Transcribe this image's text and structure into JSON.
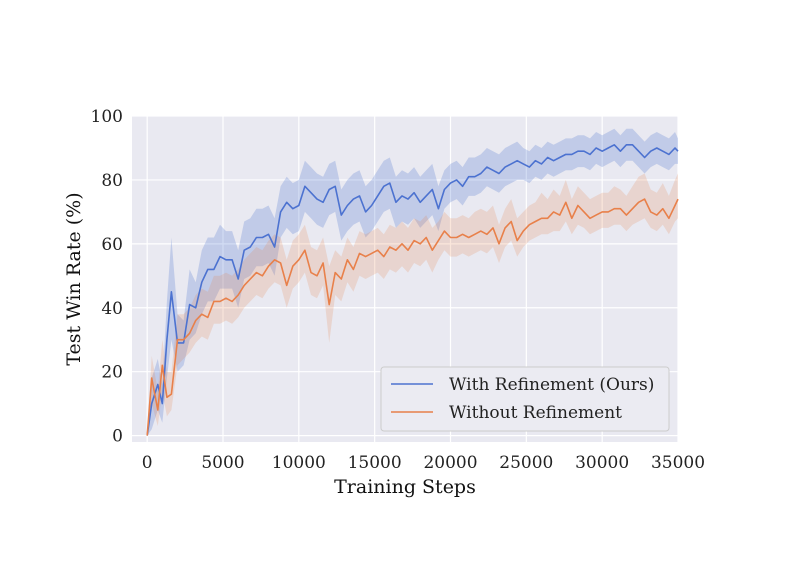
{
  "chart_data": {
    "type": "line",
    "title": "",
    "xlabel": "Training Steps",
    "ylabel": "Test Win Rate (%)",
    "xlim": [
      -1000,
      35000
    ],
    "ylim": [
      -2,
      100
    ],
    "xticks": [
      0,
      5000,
      10000,
      15000,
      20000,
      25000,
      30000,
      35000
    ],
    "xtick_labels": [
      "0",
      "5000",
      "10000",
      "15000",
      "20000",
      "25000",
      "30000",
      "35000"
    ],
    "yticks": [
      0,
      20,
      40,
      60,
      80,
      100
    ],
    "ytick_labels": [
      "0",
      "20",
      "40",
      "60",
      "80",
      "100"
    ],
    "grid": true,
    "legend_position": "lower-right",
    "background": "#e9e9f1",
    "series": [
      {
        "name": "With Refinement (Ours)",
        "color": "#4c72d0",
        "band_opacity": 0.25,
        "x": [
          0,
          300,
          700,
          1000,
          1300,
          1600,
          2000,
          2400,
          2800,
          3200,
          3600,
          4000,
          4400,
          4800,
          5200,
          5600,
          6000,
          6400,
          6800,
          7200,
          7600,
          8000,
          8400,
          8800,
          9200,
          9600,
          10000,
          10400,
          10800,
          11200,
          11600,
          12000,
          12400,
          12800,
          13200,
          13600,
          14000,
          14400,
          14800,
          15200,
          15600,
          16000,
          16400,
          16800,
          17200,
          17600,
          18000,
          18400,
          18800,
          19200,
          19600,
          20000,
          20400,
          20800,
          21200,
          21600,
          22000,
          22400,
          22800,
          23200,
          23600,
          24000,
          24400,
          24800,
          25200,
          25600,
          26000,
          26400,
          26800,
          27200,
          27600,
          28000,
          28400,
          28800,
          29200,
          29600,
          30000,
          30400,
          30800,
          31200,
          31600,
          32000,
          32400,
          32800,
          33200,
          33600,
          34000,
          34400,
          34800,
          35000
        ],
        "values": [
          0,
          10,
          16,
          10,
          30,
          45,
          29,
          29,
          41,
          40,
          48,
          52,
          52,
          56,
          55,
          55,
          49,
          58,
          59,
          62,
          62,
          63,
          59,
          70,
          73,
          71,
          72,
          78,
          76,
          74,
          73,
          77,
          78,
          69,
          72,
          74,
          75,
          70,
          72,
          75,
          78,
          79,
          73,
          75,
          74,
          76,
          73,
          75,
          77,
          71,
          77,
          79,
          80,
          78,
          81,
          81,
          82,
          84,
          83,
          82,
          84,
          85,
          86,
          85,
          84,
          86,
          85,
          87,
          86,
          87,
          88,
          88,
          89,
          89,
          88,
          90,
          89,
          90,
          91,
          89,
          91,
          91,
          89,
          87,
          89,
          90,
          89,
          88,
          90,
          89
        ],
        "lower": [
          0,
          2,
          8,
          4,
          18,
          30,
          20,
          22,
          30,
          32,
          38,
          42,
          42,
          46,
          46,
          46,
          40,
          49,
          50,
          53,
          53,
          54,
          50,
          62,
          65,
          63,
          64,
          70,
          68,
          66,
          65,
          69,
          70,
          61,
          64,
          66,
          67,
          62,
          64,
          67,
          70,
          71,
          65,
          67,
          66,
          68,
          65,
          67,
          69,
          64,
          71,
          73,
          74,
          72,
          75,
          75,
          76,
          78,
          77,
          76,
          78,
          79,
          80,
          80,
          79,
          81,
          80,
          82,
          81,
          82,
          83,
          83,
          84,
          84,
          83,
          85,
          84,
          85,
          86,
          84,
          86,
          86,
          84,
          82,
          84,
          85,
          84,
          83,
          85,
          85
        ],
        "upper": [
          0,
          18,
          24,
          16,
          42,
          62,
          38,
          36,
          52,
          48,
          58,
          62,
          62,
          66,
          64,
          64,
          58,
          67,
          68,
          71,
          71,
          72,
          68,
          78,
          81,
          79,
          80,
          86,
          84,
          82,
          81,
          85,
          86,
          77,
          80,
          82,
          83,
          78,
          80,
          83,
          86,
          87,
          81,
          83,
          82,
          84,
          81,
          83,
          85,
          78,
          83,
          85,
          86,
          84,
          87,
          87,
          88,
          90,
          89,
          88,
          90,
          91,
          92,
          90,
          89,
          91,
          90,
          92,
          91,
          92,
          93,
          93,
          94,
          94,
          93,
          95,
          94,
          95,
          96,
          94,
          96,
          96,
          94,
          92,
          94,
          95,
          94,
          93,
          95,
          93
        ]
      },
      {
        "name": "Without Refinement",
        "color": "#e8804a",
        "band_opacity": 0.2,
        "x": [
          0,
          300,
          700,
          1000,
          1300,
          1600,
          2000,
          2400,
          2800,
          3200,
          3600,
          4000,
          4400,
          4800,
          5200,
          5600,
          6000,
          6400,
          6800,
          7200,
          7600,
          8000,
          8400,
          8800,
          9200,
          9600,
          10000,
          10400,
          10800,
          11200,
          11600,
          12000,
          12400,
          12800,
          13200,
          13600,
          14000,
          14400,
          14800,
          15200,
          15600,
          16000,
          16400,
          16800,
          17200,
          17600,
          18000,
          18400,
          18800,
          19200,
          19600,
          20000,
          20400,
          20800,
          21200,
          21600,
          22000,
          22400,
          22800,
          23200,
          23600,
          24000,
          24400,
          24800,
          25200,
          25600,
          26000,
          26400,
          26800,
          27200,
          27600,
          28000,
          28400,
          28800,
          29200,
          29600,
          30000,
          30400,
          30800,
          31200,
          31600,
          32000,
          32400,
          32800,
          33200,
          33600,
          34000,
          34400,
          34800,
          35000
        ],
        "values": [
          0,
          18,
          8,
          22,
          12,
          13,
          30,
          30,
          32,
          36,
          38,
          37,
          42,
          42,
          43,
          42,
          44,
          47,
          49,
          51,
          50,
          53,
          55,
          54,
          47,
          53,
          55,
          58,
          51,
          50,
          54,
          41,
          51,
          49,
          55,
          52,
          57,
          56,
          57,
          58,
          56,
          59,
          58,
          60,
          58,
          61,
          60,
          62,
          58,
          61,
          64,
          62,
          62,
          63,
          62,
          63,
          64,
          63,
          65,
          60,
          65,
          67,
          61,
          64,
          66,
          67,
          68,
          68,
          70,
          69,
          73,
          68,
          72,
          70,
          68,
          69,
          70,
          70,
          71,
          71,
          69,
          71,
          73,
          74,
          70,
          69,
          71,
          68,
          72,
          74
        ],
        "lower": [
          0,
          10,
          3,
          14,
          6,
          8,
          22,
          24,
          26,
          29,
          31,
          30,
          35,
          35,
          36,
          35,
          37,
          40,
          42,
          44,
          43,
          46,
          48,
          47,
          40,
          46,
          48,
          51,
          44,
          43,
          47,
          29,
          44,
          42,
          48,
          45,
          50,
          49,
          50,
          51,
          49,
          52,
          51,
          53,
          51,
          54,
          53,
          55,
          51,
          55,
          58,
          56,
          56,
          57,
          56,
          57,
          58,
          57,
          59,
          54,
          59,
          61,
          56,
          59,
          61,
          62,
          63,
          63,
          64,
          64,
          67,
          63,
          66,
          65,
          63,
          64,
          65,
          65,
          66,
          66,
          64,
          66,
          67,
          68,
          65,
          64,
          66,
          63,
          67,
          68
        ],
        "upper": [
          0,
          25,
          14,
          30,
          20,
          20,
          38,
          38,
          40,
          44,
          46,
          45,
          50,
          50,
          51,
          50,
          52,
          55,
          57,
          59,
          58,
          61,
          63,
          62,
          55,
          61,
          63,
          66,
          59,
          58,
          62,
          53,
          58,
          56,
          62,
          59,
          64,
          63,
          64,
          65,
          63,
          66,
          65,
          67,
          65,
          68,
          67,
          69,
          65,
          67,
          70,
          68,
          68,
          69,
          68,
          70,
          71,
          70,
          72,
          66,
          71,
          74,
          68,
          70,
          72,
          73,
          76,
          74,
          77,
          75,
          80,
          74,
          78,
          76,
          74,
          75,
          76,
          76,
          78,
          77,
          75,
          78,
          81,
          82,
          77,
          76,
          79,
          75,
          80,
          82
        ]
      }
    ]
  }
}
